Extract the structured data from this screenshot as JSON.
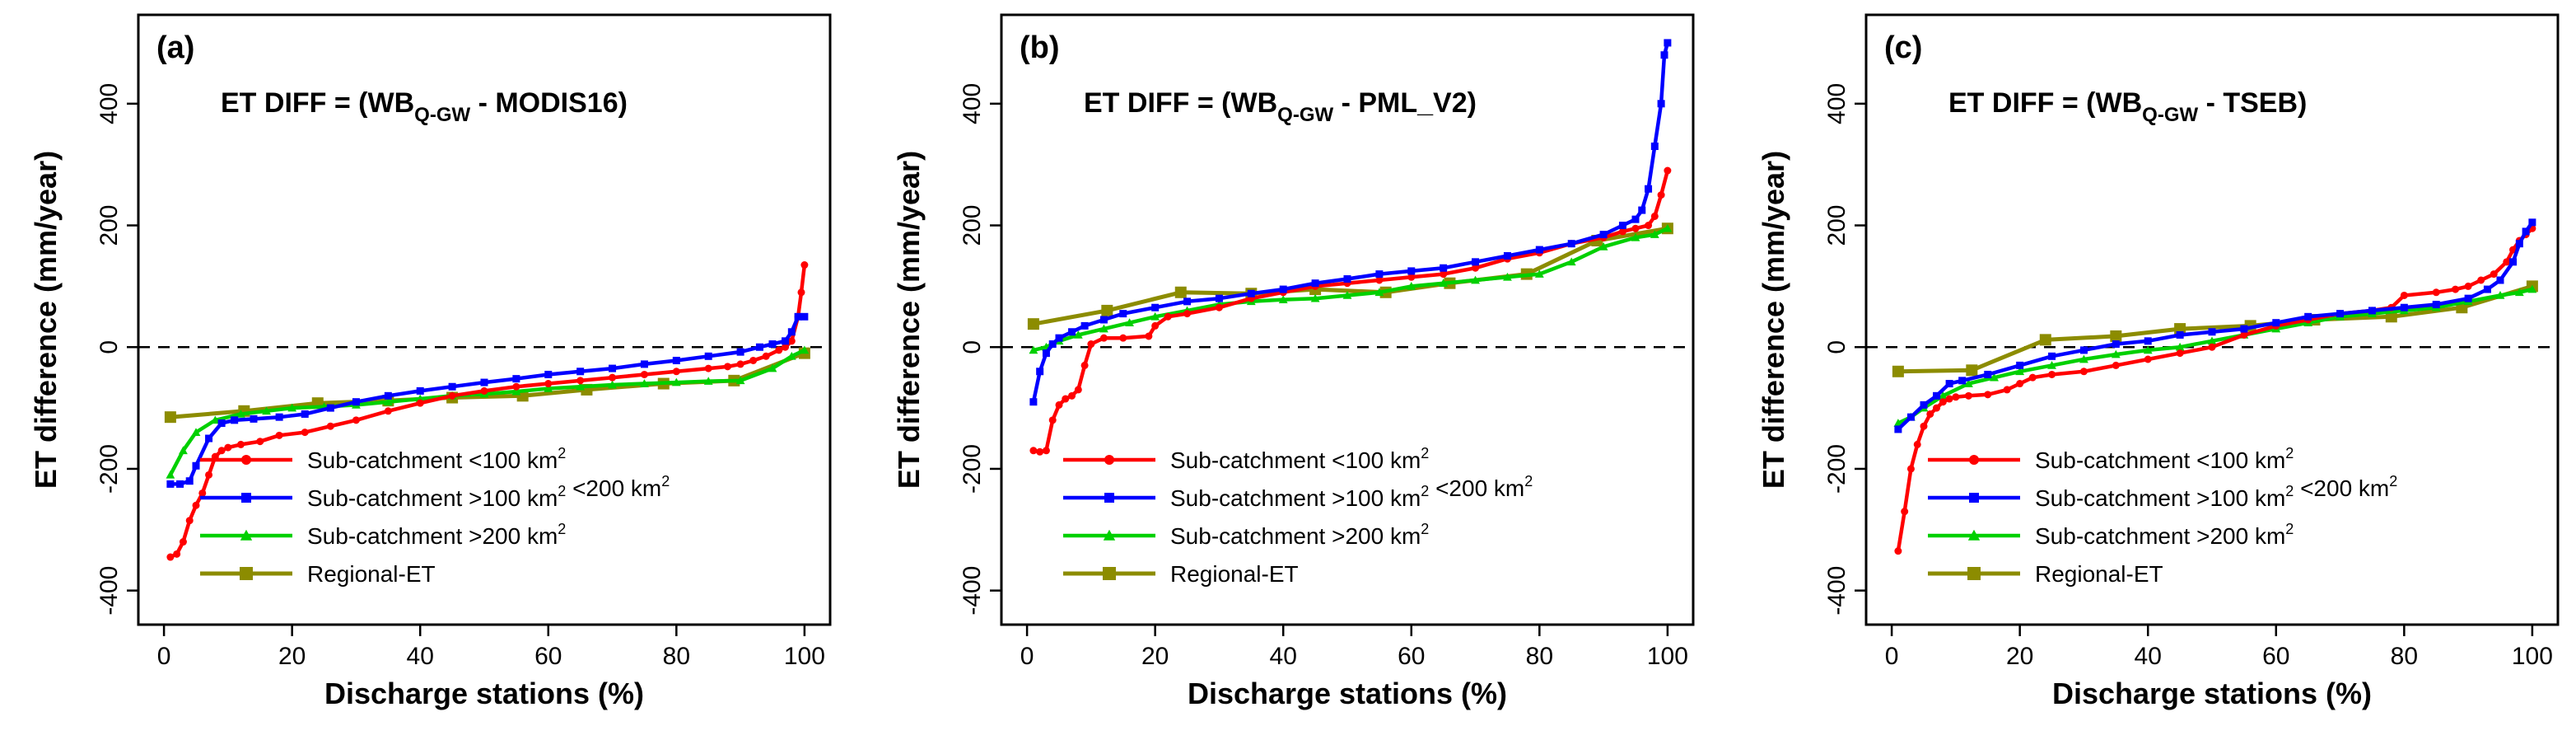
{
  "colors": {
    "sub_small": "#ff0000",
    "sub_mid": "#0000ff",
    "sub_large": "#00d000",
    "regional": "#8c8c00",
    "text": "#000000",
    "zero_line": "#000000"
  },
  "chart_data": [
    {
      "type": "line",
      "panel_label": "(a)",
      "title_prefix": "ET DIFF = (WB",
      "title_sub": "Q-GW",
      "title_suffix": " - MODIS16)",
      "xlabel": "Discharge stations (%)",
      "ylabel": "ET difference (mm/year)",
      "xlim": [
        0,
        100
      ],
      "ylim": [
        -400,
        500
      ],
      "xticks": [
        "0",
        "20",
        "40",
        "60",
        "80",
        "100"
      ],
      "yticks": [
        "-400",
        "-200",
        "0",
        "200",
        "400"
      ],
      "zero_line": true,
      "legend_position": "bottom-left",
      "legend": [
        "Sub-catchment <100 km",
        "Sub-catchment >100 km",
        " <200 km",
        "Sub-catchment >200 km",
        "Regional-ET"
      ],
      "legend_superscript": "2",
      "series": [
        {
          "name": "Sub-catchment <100 km2",
          "color_key": "sub_small",
          "x": [
            1,
            2,
            3,
            4,
            5,
            6,
            7,
            8,
            9,
            10,
            12,
            15,
            18,
            22,
            26,
            30,
            35,
            40,
            45,
            50,
            55,
            60,
            65,
            70,
            75,
            80,
            85,
            88,
            90,
            92,
            94,
            96,
            97,
            98,
            99,
            99.5,
            100
          ],
          "y": [
            -345,
            -340,
            -320,
            -285,
            -260,
            -240,
            -210,
            -180,
            -170,
            -165,
            -160,
            -155,
            -145,
            -140,
            -130,
            -120,
            -105,
            -92,
            -80,
            -72,
            -65,
            -60,
            -55,
            -50,
            -45,
            -40,
            -35,
            -32,
            -28,
            -22,
            -15,
            -5,
            0,
            10,
            50,
            90,
            135
          ]
        },
        {
          "name": "Sub-catchment >100 km2 <200 km2",
          "color_key": "sub_mid",
          "x": [
            1,
            2.5,
            4,
            5,
            7,
            9,
            11,
            14,
            18,
            22,
            26,
            30,
            35,
            40,
            45,
            50,
            55,
            60,
            65,
            70,
            75,
            80,
            85,
            90,
            93,
            95,
            97,
            98,
            99,
            100
          ],
          "y": [
            -225,
            -225,
            -220,
            -195,
            -150,
            -125,
            -120,
            -118,
            -115,
            -110,
            -100,
            -90,
            -80,
            -72,
            -65,
            -58,
            -52,
            -45,
            -40,
            -35,
            -28,
            -22,
            -15,
            -8,
            0,
            5,
            10,
            25,
            50,
            50
          ]
        },
        {
          "name": "Sub-catchment >200 km2",
          "color_key": "sub_large",
          "x": [
            1,
            3,
            5,
            8,
            12,
            16,
            20,
            25,
            30,
            35,
            40,
            45,
            50,
            55,
            60,
            65,
            70,
            75,
            80,
            85,
            90,
            95,
            98,
            100
          ],
          "y": [
            -210,
            -170,
            -140,
            -120,
            -110,
            -105,
            -100,
            -98,
            -95,
            -90,
            -85,
            -80,
            -77,
            -73,
            -68,
            -65,
            -62,
            -60,
            -58,
            -56,
            -55,
            -35,
            -15,
            -5
          ]
        },
        {
          "name": "Regional-ET",
          "color_key": "regional",
          "x": [
            1,
            12.5,
            24,
            35,
            45,
            56,
            66,
            78,
            89,
            100
          ],
          "y": [
            -115,
            -105,
            -92,
            -88,
            -83,
            -80,
            -70,
            -60,
            -55,
            -10
          ]
        }
      ]
    },
    {
      "type": "line",
      "panel_label": "(b)",
      "title_prefix": "ET DIFF = (WB",
      "title_sub": "Q-GW",
      "title_suffix": " - PML_V2)",
      "xlabel": "Discharge stations (%)",
      "ylabel": "ET difference (mm/year)",
      "xlim": [
        0,
        100
      ],
      "ylim": [
        -400,
        500
      ],
      "xticks": [
        "0",
        "20",
        "40",
        "60",
        "80",
        "100"
      ],
      "yticks": [
        "-400",
        "-200",
        "0",
        "200",
        "400"
      ],
      "zero_line": true,
      "legend_position": "bottom-left",
      "legend": [
        "Sub-catchment <100 km",
        "Sub-catchment >100 km",
        " <200 km",
        "Sub-catchment >200 km",
        "Regional-ET"
      ],
      "legend_superscript": "2",
      "series": [
        {
          "name": "Sub-catchment <100 km2",
          "color_key": "sub_small",
          "x": [
            1,
            2,
            3,
            4,
            5,
            6,
            7,
            8,
            9,
            10,
            12,
            15,
            19,
            20,
            22,
            25,
            30,
            35,
            40,
            45,
            50,
            55,
            60,
            65,
            70,
            75,
            80,
            85,
            90,
            93,
            95,
            97,
            98,
            99,
            100
          ],
          "y": [
            -170,
            -172,
            -170,
            -120,
            -95,
            -85,
            -80,
            -70,
            -30,
            5,
            15,
            15,
            18,
            35,
            50,
            55,
            65,
            80,
            90,
            100,
            105,
            110,
            115,
            120,
            130,
            145,
            155,
            170,
            180,
            190,
            195,
            200,
            215,
            250,
            290
          ]
        },
        {
          "name": "Sub-catchment >100 km2 <200 km2",
          "color_key": "sub_mid",
          "x": [
            1,
            2,
            3,
            4,
            5,
            7,
            9,
            12,
            15,
            20,
            25,
            30,
            35,
            40,
            45,
            50,
            55,
            60,
            65,
            70,
            75,
            80,
            85,
            90,
            93,
            95,
            96,
            97,
            98,
            99,
            99.5,
            100
          ],
          "y": [
            -90,
            -40,
            -10,
            5,
            15,
            25,
            35,
            45,
            55,
            65,
            75,
            80,
            88,
            95,
            105,
            112,
            120,
            125,
            130,
            140,
            150,
            160,
            170,
            185,
            200,
            210,
            225,
            260,
            330,
            400,
            480,
            500
          ]
        },
        {
          "name": "Sub-catchment >200 km2",
          "color_key": "sub_large",
          "x": [
            1,
            3,
            5,
            8,
            12,
            16,
            20,
            25,
            30,
            35,
            40,
            45,
            50,
            55,
            60,
            65,
            70,
            75,
            80,
            85,
            90,
            95,
            98,
            100
          ],
          "y": [
            -5,
            0,
            10,
            20,
            30,
            40,
            50,
            60,
            70,
            75,
            78,
            80,
            85,
            90,
            100,
            105,
            110,
            115,
            120,
            140,
            165,
            180,
            185,
            195
          ]
        },
        {
          "name": "Regional-ET",
          "color_key": "regional",
          "x": [
            1,
            12.5,
            24,
            35,
            45,
            56,
            66,
            78,
            89,
            100
          ],
          "y": [
            38,
            60,
            90,
            88,
            95,
            90,
            105,
            120,
            175,
            195
          ]
        }
      ]
    },
    {
      "type": "line",
      "panel_label": "(c)",
      "title_prefix": "ET DIFF = (WB",
      "title_sub": "Q-GW",
      "title_suffix": " - TSEB)",
      "xlabel": "Discharge stations (%)",
      "ylabel": "ET difference (mm/year)",
      "xlim": [
        0,
        100
      ],
      "ylim": [
        -400,
        500
      ],
      "xticks": [
        "0",
        "20",
        "40",
        "60",
        "80",
        "100"
      ],
      "yticks": [
        "-400",
        "-200",
        "0",
        "200",
        "400"
      ],
      "zero_line": true,
      "legend_position": "bottom-left",
      "legend": [
        "Sub-catchment <100 km",
        "Sub-catchment >100 km",
        " <200 km",
        "Sub-catchment >200 km",
        "Regional-ET"
      ],
      "legend_superscript": "2",
      "series": [
        {
          "name": "Sub-catchment <100 km2",
          "color_key": "sub_small",
          "x": [
            1,
            2,
            3,
            4,
            5,
            6,
            7,
            8,
            9,
            10,
            12,
            15,
            18,
            20,
            22,
            25,
            30,
            35,
            40,
            45,
            50,
            55,
            60,
            65,
            70,
            75,
            78,
            80,
            85,
            88,
            90,
            92,
            94,
            96,
            97,
            98,
            99,
            100
          ],
          "y": [
            -335,
            -270,
            -200,
            -160,
            -130,
            -110,
            -100,
            -90,
            -85,
            -82,
            -80,
            -78,
            -70,
            -60,
            -50,
            -45,
            -40,
            -30,
            -20,
            -10,
            0,
            20,
            35,
            45,
            55,
            60,
            65,
            85,
            90,
            95,
            100,
            110,
            120,
            140,
            160,
            175,
            185,
            195
          ]
        },
        {
          "name": "Sub-catchment >100 km2 <200 km2",
          "color_key": "sub_mid",
          "x": [
            1,
            3,
            5,
            7,
            9,
            11,
            15,
            20,
            25,
            30,
            35,
            40,
            45,
            50,
            55,
            60,
            65,
            70,
            75,
            80,
            85,
            90,
            93,
            95,
            97,
            98,
            99,
            100
          ],
          "y": [
            -135,
            -115,
            -95,
            -80,
            -60,
            -55,
            -45,
            -30,
            -15,
            -5,
            5,
            10,
            20,
            25,
            30,
            40,
            50,
            55,
            60,
            65,
            70,
            80,
            95,
            110,
            140,
            170,
            190,
            205
          ]
        },
        {
          "name": "Sub-catchment >200 km2",
          "color_key": "sub_large",
          "x": [
            1,
            3,
            5,
            8,
            12,
            16,
            20,
            25,
            30,
            35,
            40,
            45,
            50,
            55,
            60,
            65,
            70,
            75,
            80,
            85,
            90,
            95,
            98,
            100
          ],
          "y": [
            -125,
            -115,
            -100,
            -80,
            -60,
            -50,
            -40,
            -30,
            -20,
            -12,
            -5,
            0,
            10,
            20,
            30,
            40,
            50,
            55,
            60,
            65,
            75,
            85,
            90,
            95
          ]
        },
        {
          "name": "Regional-ET",
          "color_key": "regional",
          "x": [
            1,
            12.5,
            24,
            35,
            45,
            56,
            66,
            78,
            89,
            100
          ],
          "y": [
            -40,
            -38,
            12,
            18,
            30,
            35,
            45,
            50,
            65,
            100
          ]
        }
      ]
    }
  ]
}
